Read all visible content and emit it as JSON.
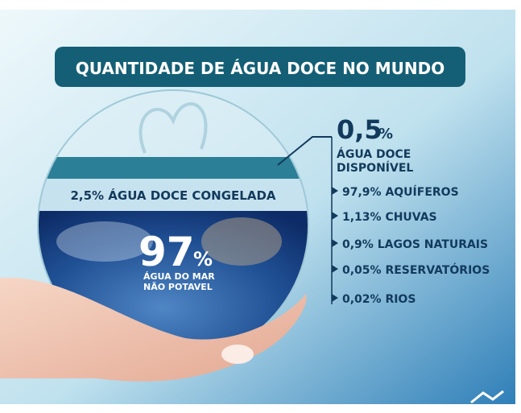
{
  "title": "QUANTIDADE DE ÁGUA DOCE NO MUNDO",
  "fresh_water": {
    "value": "0,5",
    "unit": "%",
    "label_lines": [
      "ÁGUA DOCE",
      "DISPONÍVEL"
    ]
  },
  "frozen": "2,5% ÁGUA DOCE CONGELADA",
  "sea_water": {
    "value": "97",
    "unit": "%",
    "label_lines": [
      "ÁGUA DO MAR",
      "NÃO POTAVEL"
    ]
  },
  "sources": [
    "97,9% AQUÍFEROS",
    "1,13% CHUVAS",
    "0,9% LAGOS NATURAIS",
    "0,05% RESERVATÓRIOS",
    "0,02% RIOS"
  ]
}
